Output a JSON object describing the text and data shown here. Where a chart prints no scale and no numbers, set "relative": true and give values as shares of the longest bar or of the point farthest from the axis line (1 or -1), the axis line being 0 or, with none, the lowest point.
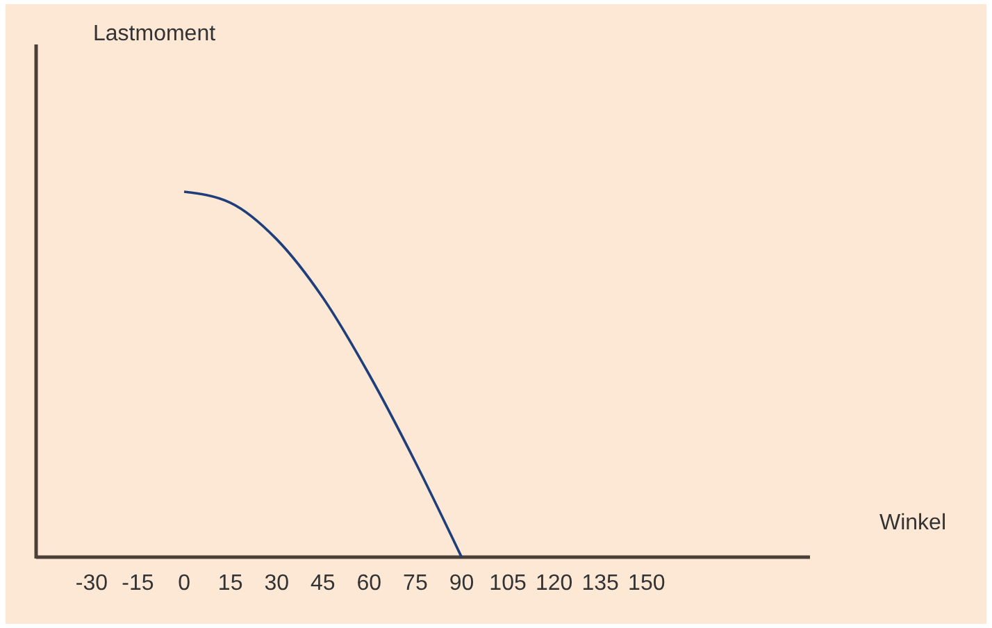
{
  "chart_data": {
    "type": "line",
    "xlabel": "Winkel",
    "annotations": [
      "Lastmoment"
    ],
    "relative": true,
    "xlim": [
      -48,
      203
    ],
    "xticks": [
      -30,
      -15,
      0,
      15,
      30,
      45,
      60,
      75,
      90,
      105,
      120,
      135,
      150
    ],
    "x": [
      0,
      15,
      30,
      45,
      60,
      75,
      90
    ],
    "series": [
      {
        "color": "#1f3f7a",
        "values": [
          1,
          0.97,
          0.87,
          0.71,
          0.5,
          0.26,
          0
        ]
      }
    ],
    "grid": false,
    "marker": "none",
    "line_style": "solid"
  }
}
